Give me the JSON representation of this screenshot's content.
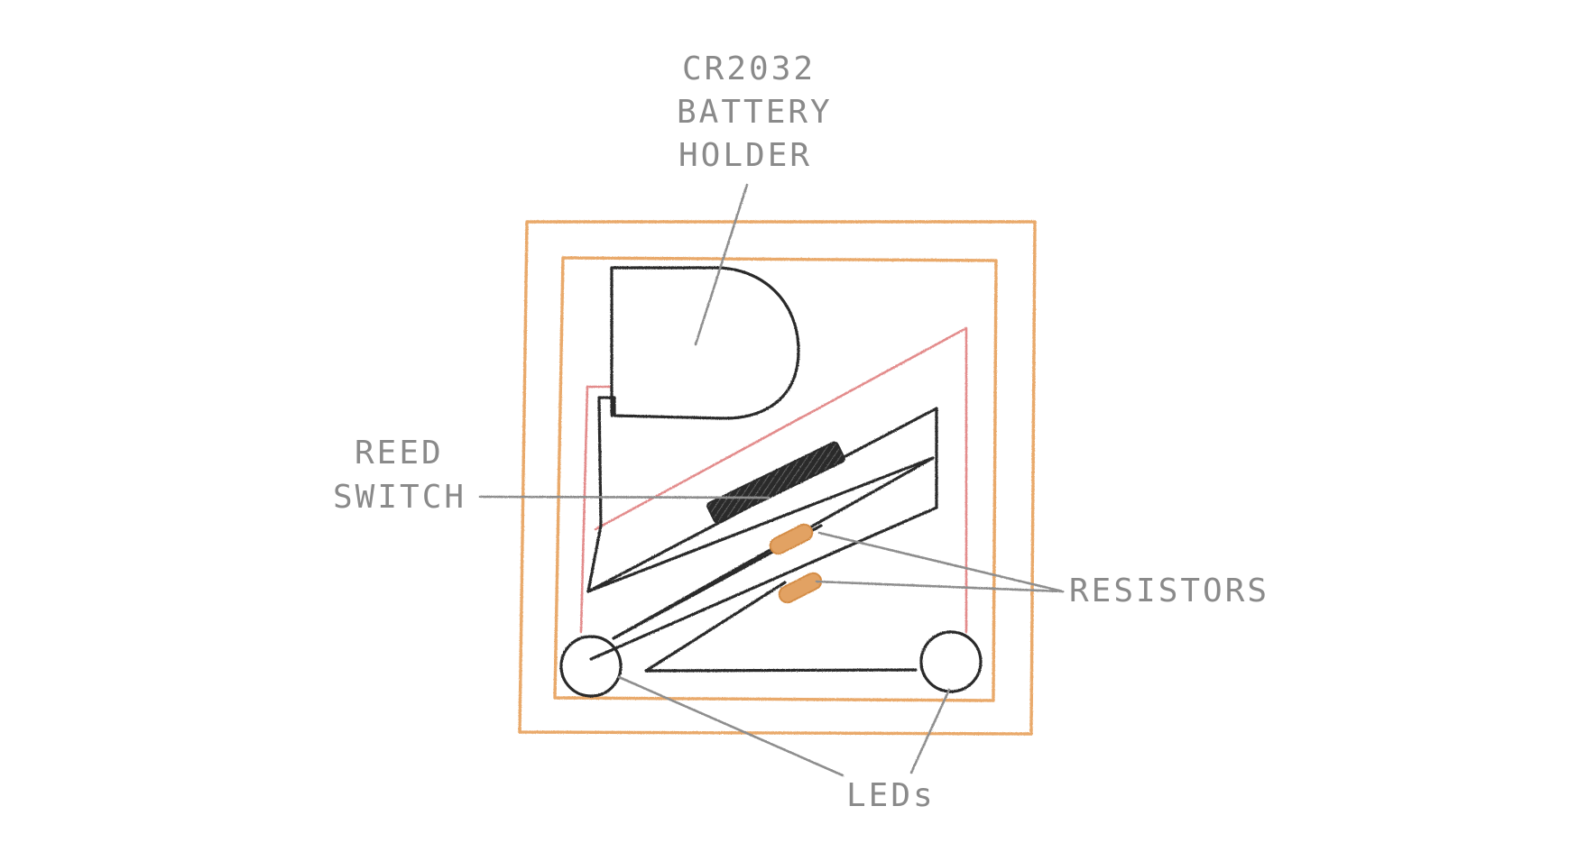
{
  "labels": {
    "battery_holder": [
      "CR2032",
      "BATTERY",
      "HOLDER"
    ],
    "reed_switch": [
      "REED",
      "SWITCH"
    ],
    "resistors": "RESISTORS",
    "leds": "LEDs"
  },
  "colors": {
    "board_outline": "#e9a96b",
    "positive_trace": "#e38b8b",
    "circuit_wire": "#2b2b2b",
    "label_text": "#8a8a8a",
    "resistor_body": "#e2a264",
    "reed_switch_body": "#2b2b2b"
  }
}
